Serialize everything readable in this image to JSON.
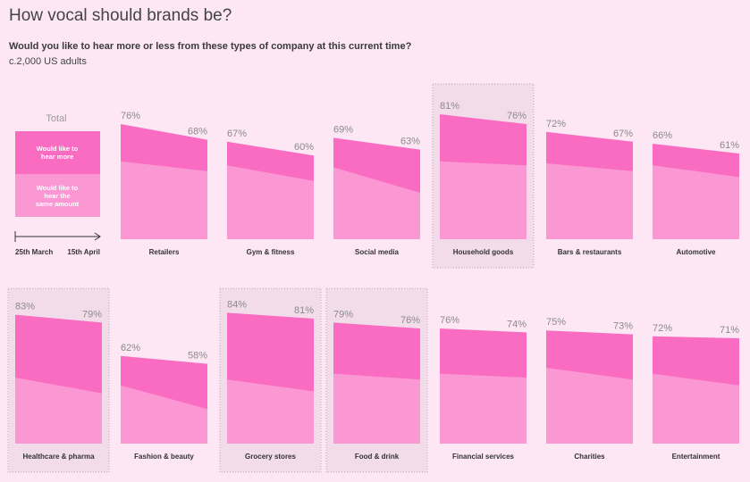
{
  "title": "How vocal should brands be?",
  "question": "Would you like to hear more or less from these types of company at this current time?",
  "base": "c.2,000 US adults",
  "legend": {
    "total_label": "Total",
    "more_label": [
      "Would like to",
      "hear more"
    ],
    "same_label": [
      "Would like to",
      "hear the",
      "same amount"
    ],
    "start_date": "25th March",
    "end_date": "15th April"
  },
  "colors": {
    "background": "#fde7f4",
    "hear_more": "#f96cc1",
    "hear_same": "#fb97d3",
    "highlight_panel": "#f3dcea",
    "label_gray": "#8a8a8a"
  },
  "chart_data": {
    "type": "area",
    "x": [
      "25th March",
      "15th April"
    ],
    "series_note": "Totals labelled; split between more/same shown by shading only",
    "categories": [
      {
        "name": "Retailers",
        "start": 76,
        "end": 68,
        "highlight": false
      },
      {
        "name": "Gym & fitness",
        "start": 67,
        "end": 60,
        "highlight": false
      },
      {
        "name": "Social media",
        "start": 69,
        "end": 63,
        "highlight": false
      },
      {
        "name": "Household goods",
        "start": 81,
        "end": 76,
        "highlight": true
      },
      {
        "name": "Bars & restaurants",
        "start": 72,
        "end": 67,
        "highlight": false
      },
      {
        "name": "Automotive",
        "start": 66,
        "end": 61,
        "highlight": false
      },
      {
        "name": "Healthcare & pharma",
        "start": 83,
        "end": 79,
        "highlight": true
      },
      {
        "name": "Fashion & beauty",
        "start": 62,
        "end": 58,
        "highlight": false
      },
      {
        "name": "Grocery stores",
        "start": 84,
        "end": 81,
        "highlight": true
      },
      {
        "name": "Food & drink",
        "start": 79,
        "end": 76,
        "highlight": true
      },
      {
        "name": "Financial services",
        "start": 76,
        "end": 74,
        "highlight": false
      },
      {
        "name": "Charities",
        "start": 75,
        "end": 73,
        "highlight": false
      },
      {
        "name": "Entertainment",
        "start": 72,
        "end": 71,
        "highlight": false
      }
    ],
    "same_amount_estimates": [
      {
        "start": 57,
        "end": 52
      },
      {
        "start": 55,
        "end": 47
      },
      {
        "start": 54,
        "end": 41
      },
      {
        "start": 57,
        "end": 55
      },
      {
        "start": 56,
        "end": 52
      },
      {
        "start": 55,
        "end": 49
      },
      {
        "start": 51,
        "end": 43
      },
      {
        "start": 47,
        "end": 35
      },
      {
        "start": 50,
        "end": 44
      },
      {
        "start": 53,
        "end": 50
      },
      {
        "start": 53,
        "end": 51
      },
      {
        "start": 56,
        "end": 50
      },
      {
        "start": 53,
        "end": 47
      }
    ]
  }
}
